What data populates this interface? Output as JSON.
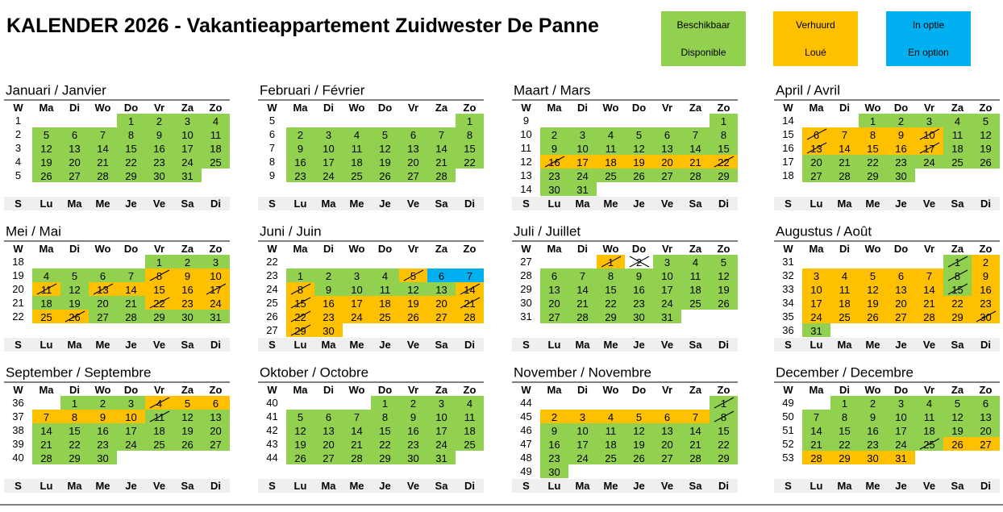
{
  "header": {
    "title": "KALENDER 2026 - Vakantieappartement Zuidwester De Panne"
  },
  "legend": [
    {
      "labels": [
        "Beschikbaar",
        "Disponible"
      ],
      "color": "#92d050"
    },
    {
      "labels": [
        "Verhuurd",
        "Loué"
      ],
      "color": "#ffc000"
    },
    {
      "labels": [
        "In optie",
        "En option"
      ],
      "color": "#00b0f0"
    }
  ],
  "weekdays_top": [
    "W",
    "Ma",
    "Di",
    "Wo",
    "Do",
    "Vr",
    "Za",
    "Zo"
  ],
  "weekdays_bottom": [
    "S",
    "Lu",
    "Ma",
    "Me",
    "Je",
    "Ve",
    "Sa",
    "Di"
  ],
  "months": [
    {
      "name": "Januari / Janvier",
      "weeks": [
        {
          "week": 1,
          "days": [
            null,
            null,
            null,
            1,
            2,
            3,
            4
          ]
        },
        {
          "week": 2,
          "days": [
            5,
            6,
            7,
            8,
            9,
            10,
            11
          ]
        },
        {
          "week": 3,
          "days": [
            12,
            13,
            14,
            15,
            16,
            17,
            18
          ]
        },
        {
          "week": 4,
          "days": [
            19,
            20,
            21,
            22,
            23,
            24,
            25
          ]
        },
        {
          "week": 5,
          "days": [
            26,
            27,
            28,
            29,
            30,
            31,
            null
          ]
        }
      ]
    },
    {
      "name": "Februari / Février",
      "weeks": [
        {
          "week": 5,
          "days": [
            null,
            null,
            null,
            null,
            null,
            null,
            1
          ]
        },
        {
          "week": 6,
          "days": [
            2,
            3,
            4,
            5,
            6,
            7,
            8
          ]
        },
        {
          "week": 7,
          "days": [
            9,
            10,
            11,
            12,
            13,
            14,
            15
          ]
        },
        {
          "week": 8,
          "days": [
            16,
            17,
            18,
            19,
            20,
            21,
            22
          ]
        },
        {
          "week": 9,
          "days": [
            23,
            24,
            25,
            26,
            27,
            28,
            null
          ]
        }
      ]
    },
    {
      "name": "Maart / Mars",
      "weeks": [
        {
          "week": 9,
          "days": [
            null,
            null,
            null,
            null,
            null,
            null,
            1
          ]
        },
        {
          "week": 10,
          "days": [
            2,
            3,
            4,
            5,
            6,
            7,
            8
          ]
        },
        {
          "week": 11,
          "days": [
            9,
            10,
            11,
            12,
            13,
            14,
            15
          ]
        },
        {
          "week": 12,
          "days": [
            16,
            17,
            18,
            19,
            20,
            21,
            22
          ]
        },
        {
          "week": 13,
          "days": [
            23,
            24,
            25,
            26,
            27,
            28,
            29
          ]
        },
        {
          "week": 14,
          "days": [
            30,
            31,
            null,
            null,
            null,
            null,
            null
          ]
        }
      ],
      "rented": [
        16,
        17,
        18,
        19,
        20,
        21,
        22
      ],
      "half": [
        16,
        22
      ]
    },
    {
      "name": "April / Avril",
      "weeks": [
        {
          "week": 14,
          "days": [
            null,
            null,
            1,
            2,
            3,
            4,
            5
          ]
        },
        {
          "week": 15,
          "days": [
            6,
            7,
            8,
            9,
            10,
            11,
            12
          ]
        },
        {
          "week": 16,
          "days": [
            13,
            14,
            15,
            16,
            17,
            18,
            19
          ]
        },
        {
          "week": 17,
          "days": [
            20,
            21,
            22,
            23,
            24,
            25,
            26
          ]
        },
        {
          "week": 18,
          "days": [
            27,
            28,
            29,
            30,
            null,
            null,
            null
          ]
        }
      ],
      "rented": [
        6,
        7,
        8,
        9,
        10,
        13,
        14,
        15,
        16,
        17
      ],
      "half": [
        6,
        10,
        13,
        17
      ]
    },
    {
      "name": "Mei / Mai",
      "weeks": [
        {
          "week": 18,
          "days": [
            null,
            null,
            null,
            null,
            1,
            2,
            3
          ]
        },
        {
          "week": 19,
          "days": [
            4,
            5,
            6,
            7,
            8,
            9,
            10
          ]
        },
        {
          "week": 20,
          "days": [
            11,
            12,
            13,
            14,
            15,
            16,
            17
          ]
        },
        {
          "week": 21,
          "days": [
            18,
            19,
            20,
            21,
            22,
            23,
            24
          ]
        },
        {
          "week": 22,
          "days": [
            25,
            26,
            27,
            28,
            29,
            30,
            31
          ]
        }
      ],
      "rented": [
        8,
        9,
        10,
        11,
        13,
        14,
        15,
        16,
        17,
        22,
        23,
        24,
        25,
        26
      ],
      "half": [
        8,
        11,
        13,
        17,
        22,
        26
      ]
    },
    {
      "name": "Juni / Juin",
      "weeks": [
        {
          "week": 22,
          "days": [
            null,
            null,
            null,
            null,
            null,
            null,
            null
          ]
        },
        {
          "week": 23,
          "days": [
            1,
            2,
            3,
            4,
            5,
            6,
            7
          ]
        },
        {
          "week": 24,
          "days": [
            8,
            9,
            10,
            11,
            12,
            13,
            14
          ]
        },
        {
          "week": 25,
          "days": [
            15,
            16,
            17,
            18,
            19,
            20,
            21
          ]
        },
        {
          "week": 26,
          "days": [
            22,
            23,
            24,
            25,
            26,
            27,
            28
          ]
        },
        {
          "week": 27,
          "days": [
            29,
            30,
            null,
            null,
            null,
            null,
            null
          ]
        }
      ],
      "rented": [
        5,
        8,
        14,
        15,
        16,
        17,
        18,
        19,
        20,
        21,
        22,
        23,
        24,
        25,
        26,
        27,
        28,
        29,
        30
      ],
      "option": [
        6,
        7
      ],
      "half": [
        5,
        8,
        14,
        15,
        21,
        22,
        29
      ]
    },
    {
      "name": "Juli / Juillet",
      "weeks": [
        {
          "week": 27,
          "days": [
            null,
            null,
            1,
            2,
            3,
            4,
            5
          ]
        },
        {
          "week": 28,
          "days": [
            6,
            7,
            8,
            9,
            10,
            11,
            12
          ]
        },
        {
          "week": 29,
          "days": [
            13,
            14,
            15,
            16,
            17,
            18,
            19
          ]
        },
        {
          "week": 30,
          "days": [
            20,
            21,
            22,
            23,
            24,
            25,
            26
          ]
        },
        {
          "week": 31,
          "days": [
            27,
            28,
            29,
            30,
            31,
            null,
            null
          ]
        }
      ],
      "rented": [
        1
      ],
      "half": [
        1
      ],
      "blocked": [
        2
      ]
    },
    {
      "name": "Augustus / Août",
      "weeks": [
        {
          "week": 31,
          "days": [
            null,
            null,
            null,
            null,
            null,
            1,
            2
          ]
        },
        {
          "week": 32,
          "days": [
            3,
            4,
            5,
            6,
            7,
            8,
            9
          ]
        },
        {
          "week": 33,
          "days": [
            10,
            11,
            12,
            13,
            14,
            15,
            16
          ]
        },
        {
          "week": 34,
          "days": [
            17,
            18,
            19,
            20,
            21,
            22,
            23
          ]
        },
        {
          "week": 35,
          "days": [
            24,
            25,
            26,
            27,
            28,
            29,
            30
          ]
        },
        {
          "week": 36,
          "days": [
            31,
            null,
            null,
            null,
            null,
            null,
            null
          ]
        }
      ],
      "rented": [
        2,
        3,
        4,
        5,
        6,
        7,
        9,
        10,
        11,
        12,
        13,
        14,
        16,
        17,
        18,
        19,
        20,
        21,
        22,
        23,
        24,
        25,
        26,
        27,
        28,
        29,
        30
      ],
      "half": [
        1,
        8,
        15,
        30
      ]
    },
    {
      "name": "September / Septembre",
      "weeks": [
        {
          "week": 36,
          "days": [
            null,
            1,
            2,
            3,
            4,
            5,
            6
          ]
        },
        {
          "week": 37,
          "days": [
            7,
            8,
            9,
            10,
            11,
            12,
            13
          ]
        },
        {
          "week": 38,
          "days": [
            14,
            15,
            16,
            17,
            18,
            19,
            20
          ]
        },
        {
          "week": 39,
          "days": [
            21,
            22,
            23,
            24,
            25,
            26,
            27
          ]
        },
        {
          "week": 40,
          "days": [
            28,
            29,
            30,
            null,
            null,
            null,
            null
          ]
        }
      ],
      "rented": [
        4,
        5,
        6,
        7,
        8,
        9,
        10
      ],
      "half": [
        4,
        11
      ]
    },
    {
      "name": "Oktober / Octobre",
      "weeks": [
        {
          "week": 40,
          "days": [
            null,
            null,
            null,
            1,
            2,
            3,
            4
          ]
        },
        {
          "week": 41,
          "days": [
            5,
            6,
            7,
            8,
            9,
            10,
            11
          ]
        },
        {
          "week": 42,
          "days": [
            12,
            13,
            14,
            15,
            16,
            17,
            18
          ]
        },
        {
          "week": 43,
          "days": [
            19,
            20,
            21,
            22,
            23,
            24,
            25
          ]
        },
        {
          "week": 44,
          "days": [
            26,
            27,
            28,
            29,
            30,
            31,
            null
          ]
        }
      ]
    },
    {
      "name": "November / Novembre",
      "weeks": [
        {
          "week": 44,
          "days": [
            null,
            null,
            null,
            null,
            null,
            null,
            1
          ]
        },
        {
          "week": 45,
          "days": [
            2,
            3,
            4,
            5,
            6,
            7,
            8
          ]
        },
        {
          "week": 46,
          "days": [
            9,
            10,
            11,
            12,
            13,
            14,
            15
          ]
        },
        {
          "week": 47,
          "days": [
            16,
            17,
            18,
            19,
            20,
            21,
            22
          ]
        },
        {
          "week": 48,
          "days": [
            23,
            24,
            25,
            26,
            27,
            28,
            29
          ]
        },
        {
          "week": 49,
          "days": [
            30,
            null,
            null,
            null,
            null,
            null,
            null
          ]
        }
      ],
      "rented": [
        2,
        3,
        4,
        5,
        6,
        7
      ],
      "half": [
        1,
        8
      ]
    },
    {
      "name": "December / Decembre",
      "weeks": [
        {
          "week": 49,
          "days": [
            null,
            1,
            2,
            3,
            4,
            5,
            6
          ]
        },
        {
          "week": 50,
          "days": [
            7,
            8,
            9,
            10,
            11,
            12,
            13
          ]
        },
        {
          "week": 51,
          "days": [
            14,
            15,
            16,
            17,
            18,
            19,
            20
          ]
        },
        {
          "week": 52,
          "days": [
            21,
            22,
            23,
            24,
            25,
            26,
            27
          ]
        },
        {
          "week": 53,
          "days": [
            28,
            29,
            30,
            31,
            null,
            null,
            null
          ]
        }
      ],
      "rented": [
        26,
        27,
        28,
        29,
        30,
        31
      ],
      "half": [
        25
      ]
    }
  ]
}
